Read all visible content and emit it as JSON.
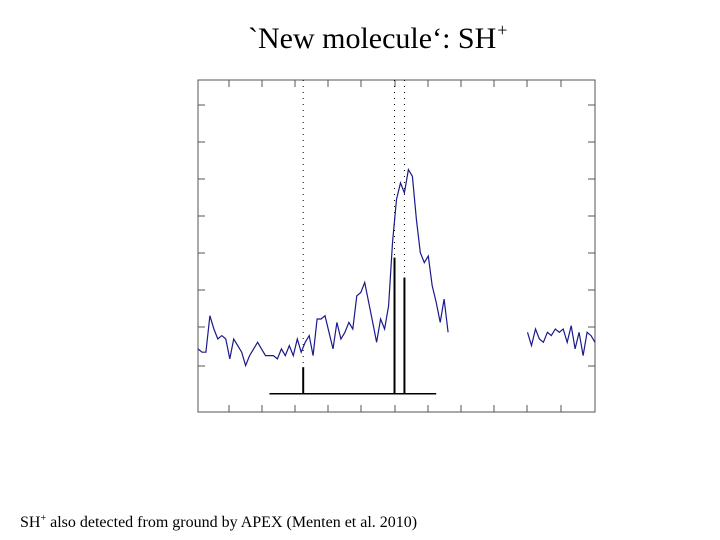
{
  "slide": {
    "title_main": "`New molecule‘:   SH",
    "title_sup": "+",
    "caption_pre": "SH",
    "caption_sup": "+",
    "caption_post": " also detected from ground by APEX (Menten et al. 2010)"
  },
  "colors": {
    "spectrum": "#1a1a8c",
    "frame": "#555555",
    "markers": "#000000"
  },
  "chart_data": {
    "type": "line",
    "title": "",
    "xlabel": "",
    "ylabel": "",
    "xlim": [
      0,
      100
    ],
    "ylim": [
      0,
      100
    ],
    "grid": false,
    "series": [
      {
        "values": [
          [
            0,
            19
          ],
          [
            1,
            18
          ],
          [
            2,
            18
          ],
          [
            3,
            29
          ],
          [
            4,
            25
          ],
          [
            5,
            22
          ],
          [
            6,
            23
          ],
          [
            7,
            22
          ],
          [
            8,
            16
          ],
          [
            9,
            22
          ],
          [
            10,
            20
          ],
          [
            11,
            18
          ],
          [
            12,
            14
          ],
          [
            13,
            17
          ],
          [
            14,
            19
          ],
          [
            15,
            21
          ],
          [
            16,
            19
          ],
          [
            17,
            17
          ],
          [
            18,
            17
          ],
          [
            19,
            17
          ],
          [
            20,
            16
          ],
          [
            21,
            19
          ],
          [
            22,
            17
          ],
          [
            23,
            20
          ],
          [
            24,
            17
          ],
          [
            25,
            22
          ],
          [
            26,
            18
          ],
          [
            27,
            21
          ],
          [
            28,
            23
          ],
          [
            29,
            17
          ],
          [
            30,
            28
          ],
          [
            31,
            28
          ],
          [
            32,
            29
          ],
          [
            33,
            24
          ],
          [
            34,
            19
          ],
          [
            35,
            27
          ],
          [
            36,
            22
          ],
          [
            37,
            24
          ],
          [
            38,
            27
          ],
          [
            39,
            25
          ],
          [
            40,
            35
          ],
          [
            41,
            36
          ],
          [
            42,
            39
          ],
          [
            43,
            33
          ],
          [
            44,
            27
          ],
          [
            45,
            21
          ],
          [
            46,
            28
          ],
          [
            47,
            25
          ],
          [
            48,
            32
          ],
          [
            49,
            51
          ],
          [
            50,
            64
          ],
          [
            51,
            69
          ],
          [
            52,
            66
          ],
          [
            53,
            73
          ],
          [
            54,
            71
          ],
          [
            55,
            58
          ],
          [
            56,
            48
          ],
          [
            57,
            45
          ],
          [
            58,
            47
          ],
          [
            59,
            38
          ],
          [
            60,
            33
          ],
          [
            61,
            27
          ],
          [
            62,
            34
          ],
          [
            63,
            24
          ]
        ]
      },
      {
        "values": [
          [
            83,
            24
          ],
          [
            84,
            20
          ],
          [
            85,
            25
          ],
          [
            86,
            22
          ],
          [
            87,
            21
          ],
          [
            88,
            24
          ],
          [
            89,
            23
          ],
          [
            90,
            25
          ],
          [
            91,
            24
          ],
          [
            92,
            25
          ],
          [
            93,
            21
          ],
          [
            94,
            26
          ],
          [
            95,
            19
          ],
          [
            96,
            24
          ],
          [
            97,
            17
          ],
          [
            98,
            24
          ],
          [
            99,
            23
          ],
          [
            100,
            21
          ]
        ]
      }
    ],
    "markers": [
      {
        "x": 26.5,
        "height": 8
      },
      {
        "x": 49.5,
        "height": 41
      },
      {
        "x": 52.0,
        "height": 35
      }
    ],
    "marker_baseline_range": [
      18,
      60
    ],
    "dotted_lines_x": [
      26.5,
      49.5,
      52.0
    ]
  }
}
